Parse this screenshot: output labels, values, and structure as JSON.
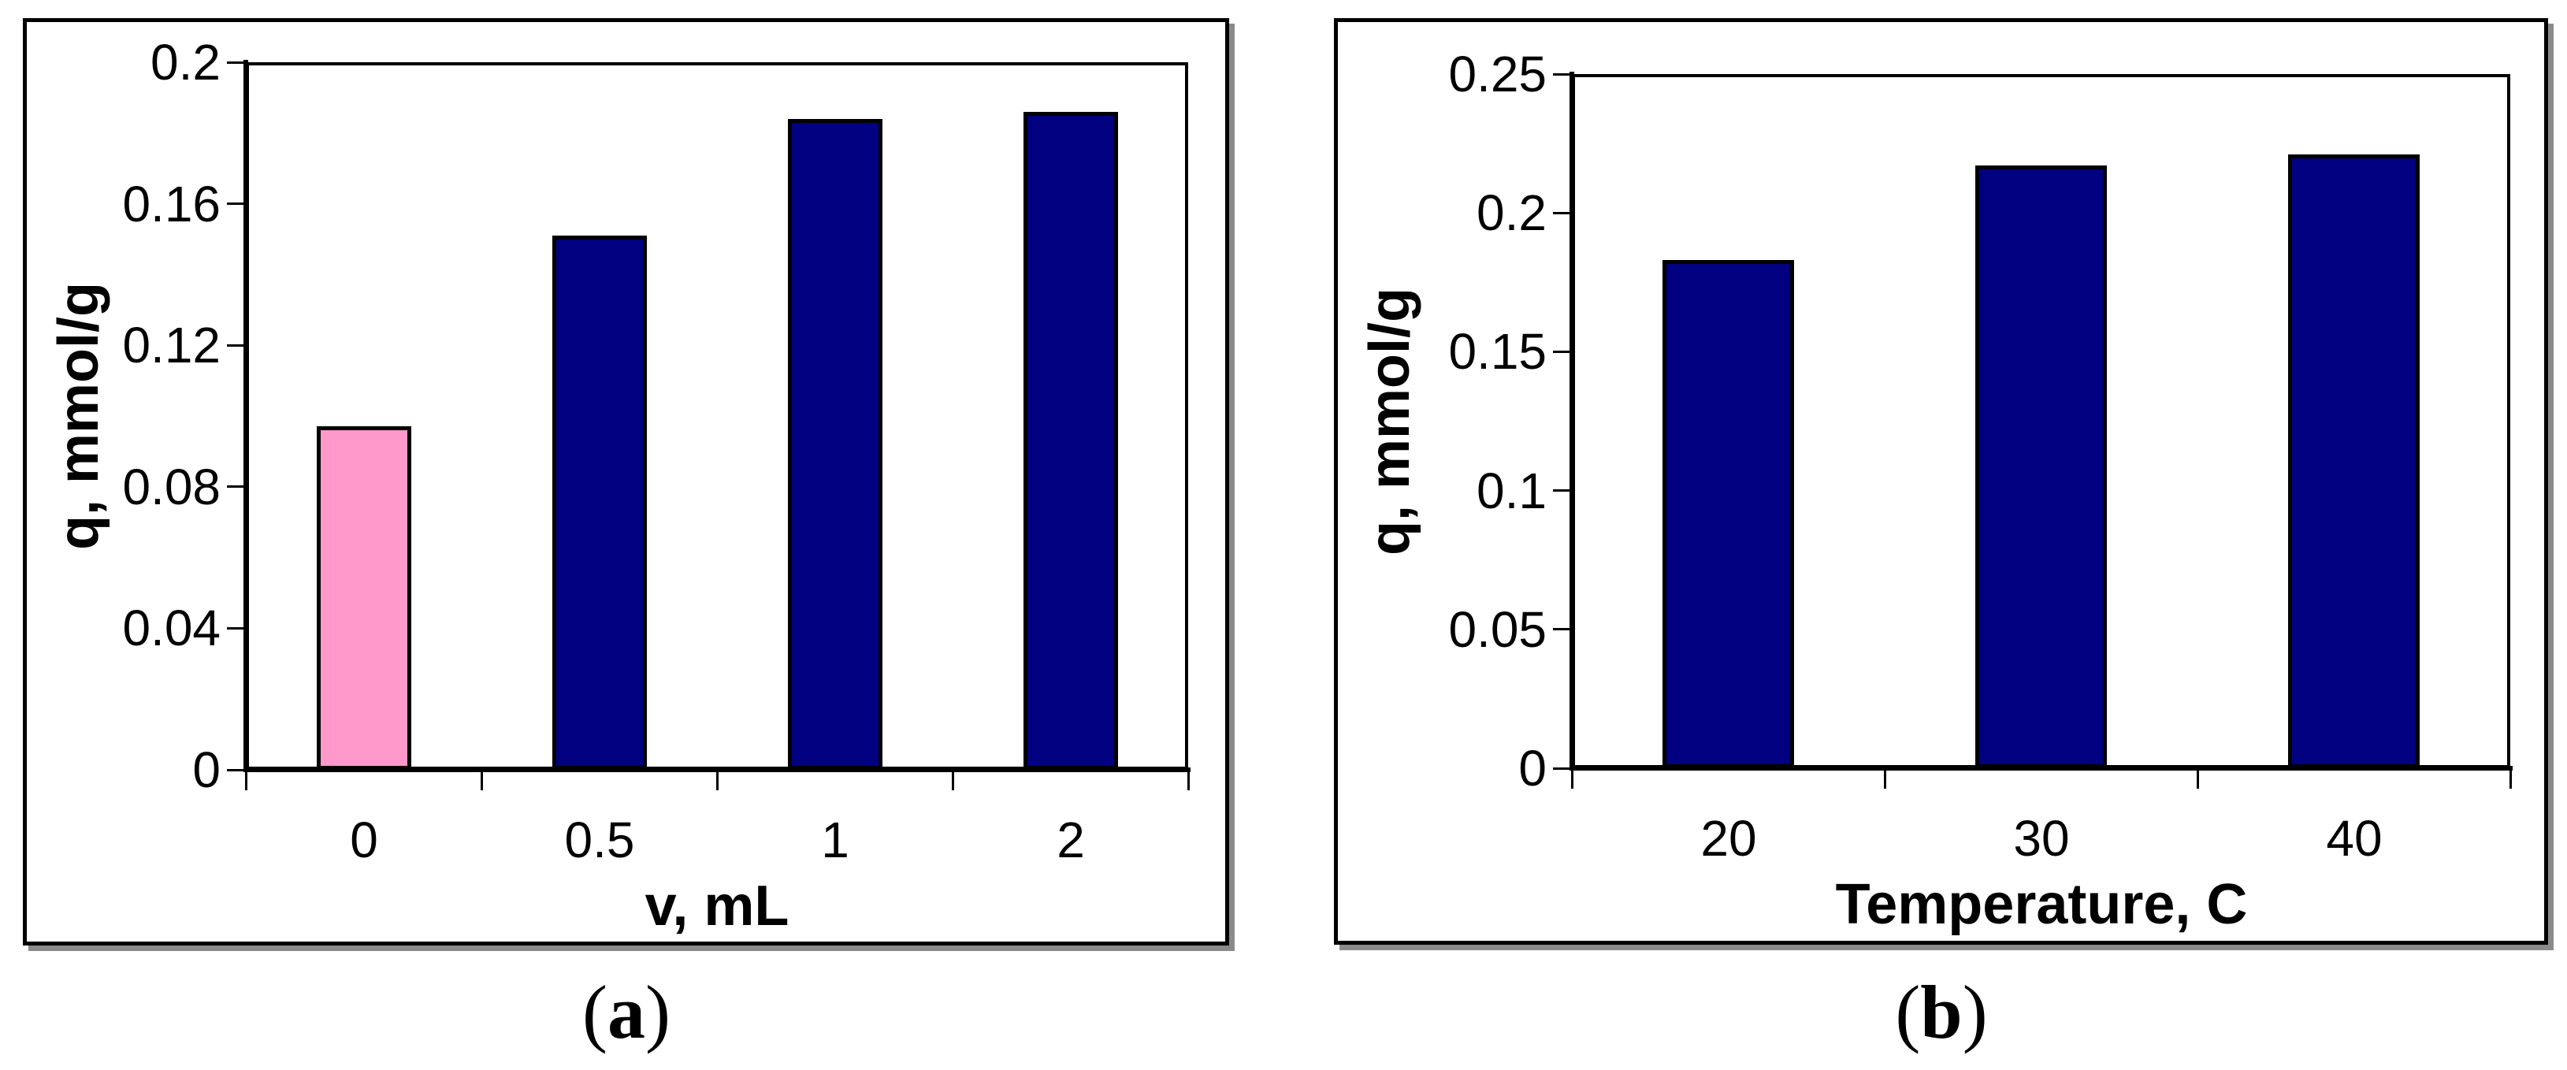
{
  "colors": {
    "bar_navy": "#000080",
    "bar_pink": "#FF99CC",
    "axis": "#000000",
    "background": "#FFFFFF",
    "frame_shadow": "#8A8A8A"
  },
  "chart_data": [
    {
      "type": "bar",
      "panel": "a",
      "title": "",
      "categories": [
        "0",
        "0.5",
        "1",
        "2"
      ],
      "values": [
        0.097,
        0.151,
        0.184,
        0.186
      ],
      "bar_colors": [
        "#FF99CC",
        "#000080",
        "#000080",
        "#000080"
      ],
      "xlabel": "v, mL",
      "ylabel": "q, mmol/g",
      "ylim": [
        0,
        0.2
      ],
      "yticks": [
        0,
        0.04,
        0.08,
        0.12,
        0.16,
        0.2
      ],
      "ytick_labels": [
        "0",
        "0.04",
        "0.08",
        "0.12",
        "0.16",
        "0.2"
      ],
      "grid": false,
      "legend": "none",
      "caption_parts": [
        "(",
        "a",
        ")"
      ]
    },
    {
      "type": "bar",
      "panel": "b",
      "title": "",
      "categories": [
        "20",
        "30",
        "40"
      ],
      "values": [
        0.183,
        0.217,
        0.221
      ],
      "bar_colors": [
        "#000080",
        "#000080",
        "#000080"
      ],
      "xlabel": "Temperature, C",
      "ylabel": "q, mmol/g",
      "ylim": [
        0,
        0.25
      ],
      "yticks": [
        0,
        0.05,
        0.1,
        0.15,
        0.2,
        0.25
      ],
      "ytick_labels": [
        "0",
        "0.05",
        "0.1",
        "0.15",
        "0.2",
        "0.25"
      ],
      "grid": false,
      "legend": "none",
      "caption_parts": [
        "(",
        "b",
        ")"
      ]
    }
  ]
}
